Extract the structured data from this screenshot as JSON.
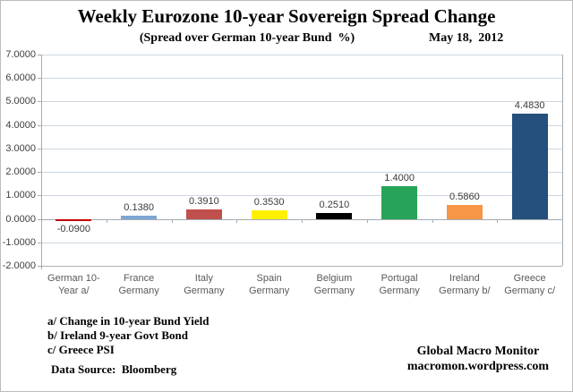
{
  "header": {
    "title": "Weekly Eurozone 10-year Sovereign Spread Change",
    "subtitle": "(Spread over German 10-year Bund  %)",
    "date": "May 18,  2012"
  },
  "chart_data": {
    "type": "bar",
    "title": "Weekly Eurozone 10-year Sovereign Spread Change",
    "subtitle": "(Spread over German 10-year Bund %)",
    "date_annotation": "May 18, 2012",
    "categories": [
      "German 10-\nYear a/",
      "France\nGermany",
      "Italy\nGermany",
      "Spain\nGermany",
      "Belgium\nGermany",
      "Portugal\nGermany",
      "Ireland\nGermany b/",
      "Greece\nGermany c/"
    ],
    "values": [
      -0.09,
      0.138,
      0.391,
      0.353,
      0.251,
      1.4,
      0.586,
      4.483
    ],
    "value_labels": [
      "-0.0900",
      "0.1380",
      "0.3910",
      "0.3530",
      "0.2510",
      "1.4000",
      "0.5860",
      "4.4830"
    ],
    "bar_colors": [
      "#c00000",
      "#7ea6d4",
      "#c0504d",
      "#fff000",
      "#000000",
      "#27a457",
      "#f79646",
      "#254f7d"
    ],
    "ylim": [
      -2,
      7
    ],
    "y_ticks": [
      "7.0000",
      "6.0000",
      "5.0000",
      "4.0000",
      "3.0000",
      "2.0000",
      "1.0000",
      "0.0000",
      "-1.0000",
      "-2.0000"
    ],
    "grid": true,
    "legend": false,
    "xlabel": "",
    "ylabel": ""
  },
  "footnotes": {
    "line_a": "a/ Change in 10-year Bund Yield",
    "line_b": "b/ Ireland 9-year Govt Bond",
    "line_c": "c/ Greece PSI",
    "source": "Data Source:  Bloomberg"
  },
  "footer": {
    "credit_line1": "Global Macro Monitor",
    "credit_line2": "macromon.wordpress.com"
  }
}
